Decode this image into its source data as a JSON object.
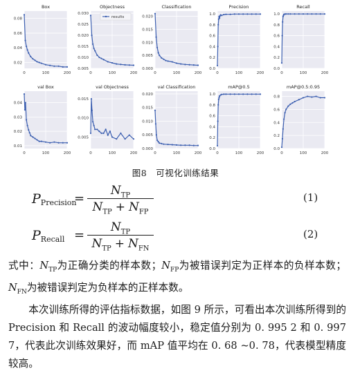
{
  "figure": {
    "caption": "图8　可视化训练结果",
    "legend_label": "results",
    "accent_color": "#3c5fb0",
    "panel_bg": "#eaeaf2",
    "grid_color": "#ffffff"
  },
  "chart_data": [
    {
      "type": "line",
      "title": "Box",
      "x": [
        0,
        5,
        10,
        15,
        20,
        30,
        40,
        50,
        60,
        70,
        80,
        100,
        120,
        140,
        160,
        180,
        200
      ],
      "y": [
        0.085,
        0.05,
        0.042,
        0.037,
        0.033,
        0.028,
        0.025,
        0.023,
        0.021,
        0.02,
        0.019,
        0.017,
        0.016,
        0.015,
        0.015,
        0.014,
        0.014
      ],
      "xlim": [
        0,
        200
      ],
      "ylim": [
        0.012,
        0.09
      ],
      "xticks": [
        "0",
        "100",
        "200"
      ],
      "yticks": [
        "0.08",
        "0.06",
        "0.04",
        "0.02"
      ],
      "ytick_values": [
        0.08,
        0.06,
        0.04,
        0.02
      ]
    },
    {
      "type": "line",
      "title": "Objectness",
      "x": [
        0,
        5,
        10,
        15,
        20,
        30,
        40,
        50,
        60,
        80,
        100,
        120,
        140,
        160,
        180,
        200
      ],
      "y": [
        0.029,
        0.02,
        0.016,
        0.014,
        0.013,
        0.011,
        0.01,
        0.0095,
        0.009,
        0.008,
        0.0075,
        0.007,
        0.0068,
        0.0066,
        0.0065,
        0.0064
      ],
      "xlim": [
        0,
        200
      ],
      "ylim": [
        0.005,
        0.031
      ],
      "xticks": [
        "0",
        "100",
        "200"
      ],
      "yticks": [
        "0.030",
        "0.025",
        "0.020",
        "0.015",
        "0.010",
        "0.005"
      ],
      "ytick_values": [
        0.03,
        0.025,
        0.02,
        0.015,
        0.01,
        0.005
      ]
    },
    {
      "type": "line",
      "title": "Classification",
      "x": [
        0,
        5,
        10,
        15,
        20,
        30,
        40,
        50,
        60,
        80,
        100,
        120,
        140,
        160,
        180,
        200
      ],
      "y": [
        0.021,
        0.012,
        0.008,
        0.006,
        0.005,
        0.004,
        0.0035,
        0.003,
        0.0028,
        0.0025,
        0.002,
        0.0017,
        0.0015,
        0.0014,
        0.0013,
        0.0012
      ],
      "xlim": [
        0,
        200
      ],
      "ylim": [
        0,
        0.022
      ],
      "xticks": [
        "0",
        "100",
        "200"
      ],
      "yticks": [
        "0.020",
        "0.015",
        "0.010",
        "0.005",
        "0.000"
      ],
      "ytick_values": [
        0.02,
        0.015,
        0.01,
        0.005,
        0
      ]
    },
    {
      "type": "line",
      "title": "Precision",
      "x": [
        0,
        2,
        4,
        6,
        8,
        10,
        12,
        15,
        20,
        30,
        40,
        60,
        80,
        100,
        120,
        140,
        160,
        180,
        200
      ],
      "y": [
        0.05,
        0.4,
        0.8,
        0.9,
        0.95,
        0.92,
        0.96,
        0.98,
        0.97,
        0.985,
        0.99,
        0.99,
        0.995,
        0.995,
        0.995,
        0.995,
        0.995,
        0.995,
        0.995
      ],
      "xlim": [
        0,
        200
      ],
      "ylim": [
        0,
        1.05
      ],
      "xticks": [
        "0",
        "100",
        "200"
      ],
      "yticks": [
        "1.0",
        "0.8",
        "0.6",
        "0.4",
        "0.2",
        "0.0"
      ],
      "ytick_values": [
        1,
        0.8,
        0.6,
        0.4,
        0.2,
        0
      ]
    },
    {
      "type": "line",
      "title": "Recall",
      "x": [
        0,
        2,
        4,
        6,
        8,
        10,
        15,
        20,
        30,
        40,
        60,
        80,
        100,
        120,
        140,
        160,
        180,
        200
      ],
      "y": [
        0.1,
        0.6,
        0.85,
        0.95,
        0.97,
        0.99,
        0.995,
        0.997,
        0.997,
        0.997,
        0.997,
        0.997,
        0.997,
        0.997,
        0.997,
        0.997,
        0.997,
        0.997
      ],
      "xlim": [
        0,
        200
      ],
      "ylim": [
        0,
        1.05
      ],
      "xticks": [
        "0",
        "100",
        "200"
      ],
      "yticks": [
        "1.0",
        "0.8",
        "0.6",
        "0.4",
        "0.2",
        "0.0"
      ],
      "ytick_values": [
        1,
        0.8,
        0.6,
        0.4,
        0.2,
        0
      ]
    },
    {
      "type": "line",
      "title": "val Box",
      "x": [
        0,
        3,
        6,
        10,
        15,
        20,
        25,
        30,
        40,
        50,
        60,
        70,
        80,
        100,
        120,
        140,
        160,
        180,
        200
      ],
      "y": [
        0.046,
        0.035,
        0.04,
        0.028,
        0.024,
        0.021,
        0.019,
        0.017,
        0.016,
        0.015,
        0.014,
        0.013,
        0.013,
        0.0125,
        0.012,
        0.0125,
        0.012,
        0.012,
        0.012
      ],
      "xlim": [
        0,
        200
      ],
      "ylim": [
        0.008,
        0.048
      ],
      "xticks": [
        "0",
        "100",
        "200"
      ],
      "yticks": [
        "0.04",
        "0.03",
        "0.02",
        "0.01"
      ],
      "ytick_values": [
        0.04,
        0.03,
        0.02,
        0.01
      ]
    },
    {
      "type": "line",
      "title": "val Objectness",
      "x": [
        0,
        3,
        6,
        10,
        15,
        20,
        30,
        40,
        50,
        60,
        70,
        80,
        90,
        100,
        120,
        140,
        160,
        180,
        200
      ],
      "y": [
        0.006,
        0.015,
        0.012,
        0.009,
        0.008,
        0.007,
        0.007,
        0.0065,
        0.006,
        0.006,
        0.007,
        0.0055,
        0.0065,
        0.005,
        0.0045,
        0.006,
        0.0045,
        0.0055,
        0.0045
      ],
      "xlim": [
        0,
        200
      ],
      "ylim": [
        0.002,
        0.017
      ],
      "xticks": [
        "0",
        "100",
        "200"
      ],
      "yticks": [
        "0.015",
        "0.010",
        "0.005"
      ],
      "ytick_values": [
        0.015,
        0.01,
        0.005
      ]
    },
    {
      "type": "line",
      "title": "val Classification",
      "x": [
        0,
        3,
        6,
        10,
        15,
        20,
        30,
        40,
        60,
        80,
        100,
        120,
        140,
        160,
        180,
        200
      ],
      "y": [
        0.014,
        0.009,
        0.005,
        0.003,
        0.0025,
        0.002,
        0.0018,
        0.0016,
        0.0015,
        0.0014,
        0.0013,
        0.0012,
        0.0012,
        0.0012,
        0.0011,
        0.0011
      ],
      "xlim": [
        0,
        200
      ],
      "ylim": [
        0,
        0.021
      ],
      "xticks": [
        "0",
        "100",
        "200"
      ],
      "yticks": [
        "0.020",
        "0.015",
        "0.010",
        "0.005",
        "0.000"
      ],
      "ytick_values": [
        0.02,
        0.015,
        0.01,
        0.005,
        0
      ]
    },
    {
      "type": "line",
      "title": "mAP@0.5",
      "x": [
        0,
        2,
        4,
        6,
        8,
        10,
        15,
        20,
        30,
        40,
        60,
        80,
        100,
        120,
        140,
        160,
        180,
        200
      ],
      "y": [
        0.05,
        0.5,
        0.8,
        0.9,
        0.93,
        0.96,
        0.98,
        0.99,
        0.995,
        0.995,
        0.995,
        0.995,
        0.995,
        0.995,
        0.995,
        0.995,
        0.995,
        0.995
      ],
      "xlim": [
        0,
        200
      ],
      "ylim": [
        0,
        1.05
      ],
      "xticks": [
        "0",
        "100",
        "200"
      ],
      "yticks": [
        "1.0",
        "0.8",
        "0.6",
        "0.4",
        "0.2",
        "0.0"
      ],
      "ytick_values": [
        1,
        0.8,
        0.6,
        0.4,
        0.2,
        0
      ]
    },
    {
      "type": "line",
      "title": "mAP@0.5:0.95",
      "x": [
        0,
        3,
        6,
        10,
        15,
        20,
        30,
        40,
        50,
        60,
        80,
        100,
        120,
        140,
        160,
        180,
        200
      ],
      "y": [
        0.02,
        0.15,
        0.3,
        0.45,
        0.55,
        0.6,
        0.65,
        0.68,
        0.7,
        0.72,
        0.75,
        0.78,
        0.8,
        0.79,
        0.8,
        0.78,
        0.78
      ],
      "xlim": [
        0,
        200
      ],
      "ylim": [
        0,
        0.88
      ],
      "xticks": [
        "0",
        "100",
        "200"
      ],
      "yticks": [
        "0.8",
        "0.6",
        "0.4",
        "0.2",
        "0.0"
      ],
      "ytick_values": [
        0.8,
        0.6,
        0.4,
        0.2,
        0
      ]
    }
  ],
  "equations": [
    {
      "lhs_symbol": "P",
      "lhs_sub": "Precision",
      "num_symbol": "N",
      "num_sub": "TP",
      "den_a_symbol": "N",
      "den_a_sub": "TP",
      "plus": "+",
      "den_b_symbol": "N",
      "den_b_sub": "FP",
      "number": "(1)"
    },
    {
      "lhs_symbol": "P",
      "lhs_sub": "Recall",
      "num_symbol": "N",
      "num_sub": "TP",
      "den_a_symbol": "N",
      "den_a_sub": "TP",
      "plus": "+",
      "den_b_symbol": "N",
      "den_b_sub": "FN",
      "number": "(2)"
    }
  ],
  "body": {
    "p1_a": "式中：",
    "p1_s1": "N",
    "p1_s1_sub": "TP",
    "p1_b": "为正确分类的样本数；",
    "p1_s2": "N",
    "p1_s2_sub": "FP",
    "p1_c": "为被错误判定为正样本的负样本数；",
    "p1_s3": "N",
    "p1_s3_sub": "FN",
    "p1_d": "为被错误判定为负样本的正样本数。",
    "p2": "本次训练所得的评估指标数据，如图 9 所示，可看出本次训练所得到的 Precision 和 Recall 的波动幅度较小，稳定值分别为 0. 995 2 和 0. 997 7，代表此次训练效果好，而 mAP 值平均在 0. 68 ~0. 78，代表模型精度较高。"
  }
}
